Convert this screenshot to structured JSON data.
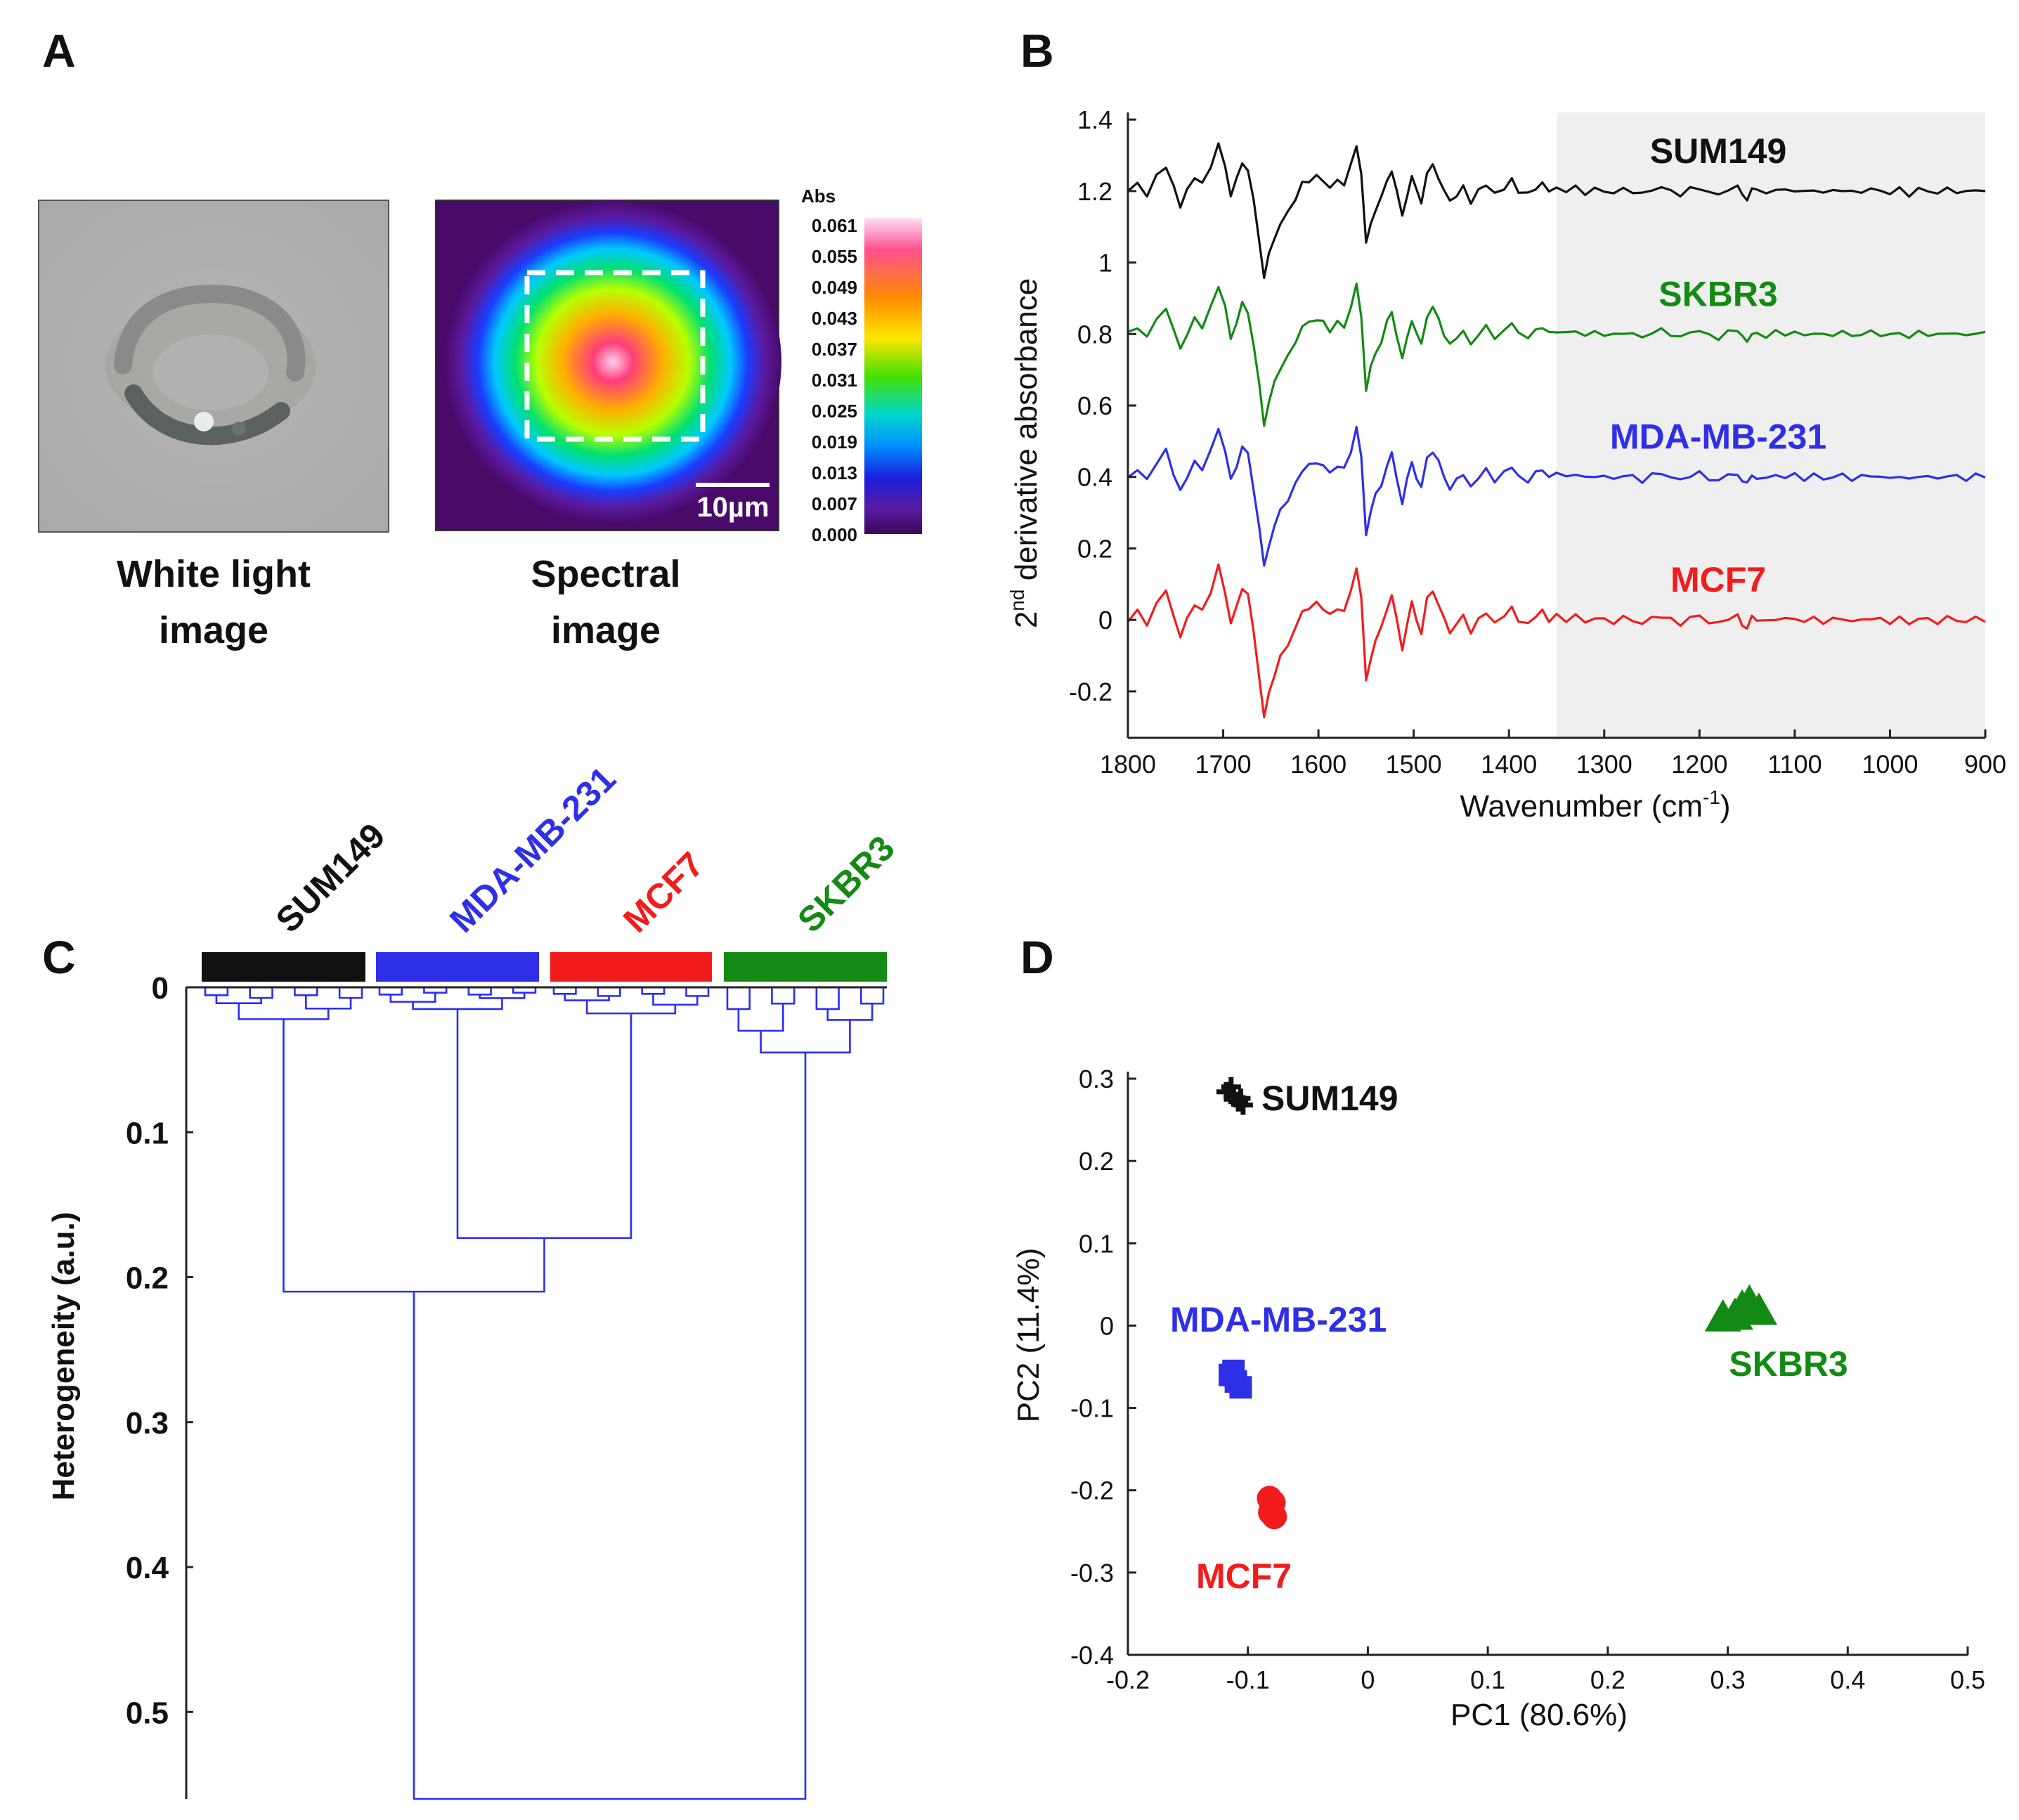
{
  "panels": {
    "a": {
      "letter": "A",
      "white_light_caption": [
        "White light",
        "image"
      ],
      "spectral_caption": [
        "Spectral",
        "image"
      ],
      "scale_bar_label": "10µm",
      "colorbar_title": "Abs",
      "colorbar_ticks": [
        "0.061",
        "0.055",
        "0.049",
        "0.043",
        "0.037",
        "0.031",
        "0.025",
        "0.019",
        "0.013",
        "0.007",
        "0.000"
      ]
    },
    "b": {
      "letter": "B"
    },
    "c": {
      "letter": "C"
    },
    "d": {
      "letter": "D"
    }
  },
  "colors": {
    "SUM149": "#111111",
    "SKBR3": "#138a13",
    "MDA-MB-231": "#2f2fe8",
    "MCF7": "#f21c1c",
    "dendrogram": "#2b2bff",
    "shade": "#efefef"
  },
  "chart_data": [
    {
      "panel": "B",
      "type": "line",
      "xlabel_main": "Wavenumber (cm",
      "xlabel_sup": "-1",
      "xlabel_end": ")",
      "ylabel_prefix": "2",
      "ylabel_sup": "nd",
      "ylabel_rest": " derivative absorbance",
      "xlim": [
        1800,
        900
      ],
      "ylim": [
        -0.33,
        1.42
      ],
      "x_reversed": true,
      "x_ticks": [
        "1800",
        "1700",
        "1600",
        "1500",
        "1400",
        "1300",
        "1200",
        "1100",
        "1000",
        "900"
      ],
      "y_ticks": [
        "-0.2",
        "0",
        "0.2",
        "0.4",
        "0.6",
        "0.8",
        "1",
        "1.2",
        "1.4"
      ],
      "shaded_x_range": [
        1350,
        900
      ],
      "grid": false,
      "series": [
        {
          "name": "SUM149",
          "offset": 1.2,
          "amp": 1.0,
          "color_key": "SUM149"
        },
        {
          "name": "SKBR3",
          "offset": 0.8,
          "amp": 1.05,
          "color_key": "SKBR3"
        },
        {
          "name": "MDA-MB-231",
          "offset": 0.4,
          "amp": 1.05,
          "color_key": "MDA-MB-231"
        },
        {
          "name": "MCF7",
          "offset": 0.0,
          "amp": 1.15,
          "color_key": "MCF7"
        }
      ],
      "feature_points": [
        [
          1800,
          0.0
        ],
        [
          1790,
          0.02
        ],
        [
          1780,
          -0.01
        ],
        [
          1770,
          0.04
        ],
        [
          1760,
          0.07
        ],
        [
          1752,
          0.01
        ],
        [
          1745,
          -0.04
        ],
        [
          1738,
          0.0
        ],
        [
          1730,
          0.04
        ],
        [
          1722,
          0.02
        ],
        [
          1713,
          0.07
        ],
        [
          1705,
          0.13
        ],
        [
          1698,
          0.07
        ],
        [
          1692,
          -0.01
        ],
        [
          1686,
          0.03
        ],
        [
          1680,
          0.08
        ],
        [
          1674,
          0.06
        ],
        [
          1668,
          -0.03
        ],
        [
          1662,
          -0.14
        ],
        [
          1657,
          -0.24
        ],
        [
          1652,
          -0.18
        ],
        [
          1646,
          -0.13
        ],
        [
          1640,
          -0.09
        ],
        [
          1632,
          -0.06
        ],
        [
          1624,
          -0.02
        ],
        [
          1617,
          0.02
        ],
        [
          1610,
          0.03
        ],
        [
          1602,
          0.04
        ],
        [
          1595,
          0.03
        ],
        [
          1588,
          0.01
        ],
        [
          1580,
          0.03
        ],
        [
          1573,
          0.02
        ],
        [
          1566,
          0.07
        ],
        [
          1560,
          0.13
        ],
        [
          1555,
          0.05
        ],
        [
          1550,
          -0.15
        ],
        [
          1545,
          -0.09
        ],
        [
          1540,
          -0.05
        ],
        [
          1534,
          -0.02
        ],
        [
          1528,
          0.03
        ],
        [
          1523,
          0.06
        ],
        [
          1518,
          0.0
        ],
        [
          1512,
          -0.07
        ],
        [
          1507,
          -0.01
        ],
        [
          1502,
          0.04
        ],
        [
          1497,
          0.0
        ],
        [
          1492,
          -0.03
        ],
        [
          1486,
          0.05
        ],
        [
          1480,
          0.07
        ],
        [
          1474,
          0.04
        ],
        [
          1468,
          0.0
        ],
        [
          1462,
          -0.03
        ],
        [
          1455,
          -0.01
        ],
        [
          1448,
          0.01
        ],
        [
          1440,
          -0.03
        ],
        [
          1432,
          0.0
        ],
        [
          1424,
          0.02
        ],
        [
          1415,
          -0.01
        ],
        [
          1405,
          0.01
        ],
        [
          1397,
          0.03
        ],
        [
          1390,
          0.0
        ],
        [
          1380,
          -0.01
        ],
        [
          1372,
          0.01
        ],
        [
          1365,
          0.02
        ],
        [
          1358,
          0.0
        ],
        [
          1350,
          0.01
        ],
        [
          1340,
          0.0
        ],
        [
          1330,
          0.01
        ],
        [
          1320,
          -0.005
        ],
        [
          1310,
          0.005
        ],
        [
          1300,
          0.0
        ],
        [
          1290,
          -0.005
        ],
        [
          1280,
          0.005
        ],
        [
          1270,
          0.0
        ],
        [
          1260,
          -0.01
        ],
        [
          1250,
          0.005
        ],
        [
          1240,
          0.01
        ],
        [
          1230,
          0.0
        ],
        [
          1220,
          -0.01
        ],
        [
          1210,
          0.005
        ],
        [
          1200,
          0.01
        ],
        [
          1190,
          -0.005
        ],
        [
          1180,
          -0.01
        ],
        [
          1170,
          0.005
        ],
        [
          1160,
          0.01
        ],
        [
          1155,
          -0.01
        ],
        [
          1150,
          -0.02
        ],
        [
          1145,
          0.005
        ],
        [
          1140,
          0.0
        ],
        [
          1130,
          -0.005
        ],
        [
          1120,
          0.005
        ],
        [
          1110,
          0.0
        ],
        [
          1100,
          0.005
        ],
        [
          1090,
          -0.005
        ],
        [
          1080,
          0.005
        ],
        [
          1070,
          -0.005
        ],
        [
          1060,
          0.0
        ],
        [
          1050,
          0.005
        ],
        [
          1040,
          -0.005
        ],
        [
          1030,
          0.0
        ],
        [
          1020,
          0.005
        ],
        [
          1010,
          0.0
        ],
        [
          1000,
          -0.005
        ],
        [
          990,
          0.005
        ],
        [
          980,
          -0.01
        ],
        [
          970,
          0.005
        ],
        [
          960,
          0.0
        ],
        [
          950,
          -0.005
        ],
        [
          940,
          0.005
        ],
        [
          930,
          0.0
        ],
        [
          920,
          -0.005
        ],
        [
          910,
          0.005
        ],
        [
          900,
          0.0
        ]
      ]
    },
    {
      "panel": "C",
      "type": "dendrogram",
      "ylabel": "Heterogeneity (a.u.)",
      "ylim": [
        0,
        0.56
      ],
      "y_reversed": true,
      "y_ticks": [
        "0",
        "0.1",
        "0.2",
        "0.3",
        "0.4",
        "0.5"
      ],
      "group_labels": [
        "SUM149",
        "MDA-MB-231",
        "MCF7",
        "SKBR3"
      ],
      "leaves_per_group": 8,
      "group_heights": [
        0.022,
        0.015,
        0.018,
        0.045
      ],
      "merges": [
        {
          "left": "MDA-MB-231",
          "right": "MCF7",
          "height": 0.173
        },
        {
          "left": "SUM149",
          "right": "MDA-MB-231+MCF7",
          "height": 0.21
        },
        {
          "left": "SUM149+MDA-MB-231+MCF7",
          "right": "SKBR3",
          "height": 0.56
        }
      ]
    },
    {
      "panel": "D",
      "type": "scatter",
      "xlabel": "PC1 (80.6%)",
      "ylabel": "PC2 (11.4%)",
      "xlim": [
        -0.2,
        0.5
      ],
      "ylim": [
        -0.4,
        0.3
      ],
      "x_ticks": [
        "-0.2",
        "-0.1",
        "0",
        "0.1",
        "0.2",
        "0.3",
        "0.4",
        "0.5"
      ],
      "y_ticks": [
        "-0.4",
        "-0.3",
        "-0.2",
        "-0.1",
        "0",
        "0.1",
        "0.2",
        "0.3"
      ],
      "grid": false,
      "series": [
        {
          "name": "SUM149",
          "marker": "plus",
          "color_key": "SUM149",
          "points": [
            [
              -0.118,
              0.284
            ],
            [
              -0.112,
              0.278
            ],
            [
              -0.108,
              0.272
            ],
            [
              -0.104,
              0.268
            ],
            [
              -0.114,
              0.29
            ],
            [
              -0.106,
              0.276
            ]
          ]
        },
        {
          "name": "MDA-MB-231",
          "marker": "square",
          "color_key": "MDA-MB-231",
          "points": [
            [
              -0.115,
              -0.06
            ],
            [
              -0.11,
              -0.068
            ],
            [
              -0.106,
              -0.075
            ],
            [
              -0.112,
              -0.055
            ]
          ]
        },
        {
          "name": "MCF7",
          "marker": "circle",
          "color_key": "MCF7",
          "points": [
            [
              -0.082,
              -0.21
            ],
            [
              -0.08,
              -0.22
            ],
            [
              -0.078,
              -0.232
            ],
            [
              -0.079,
              -0.215
            ],
            [
              -0.081,
              -0.227
            ]
          ]
        },
        {
          "name": "SKBR3",
          "marker": "triangle",
          "color_key": "SKBR3",
          "points": [
            [
              0.296,
              0.01
            ],
            [
              0.312,
              0.022
            ],
            [
              0.318,
              0.028
            ],
            [
              0.326,
              0.018
            ],
            [
              0.306,
              0.012
            ]
          ]
        }
      ]
    }
  ]
}
